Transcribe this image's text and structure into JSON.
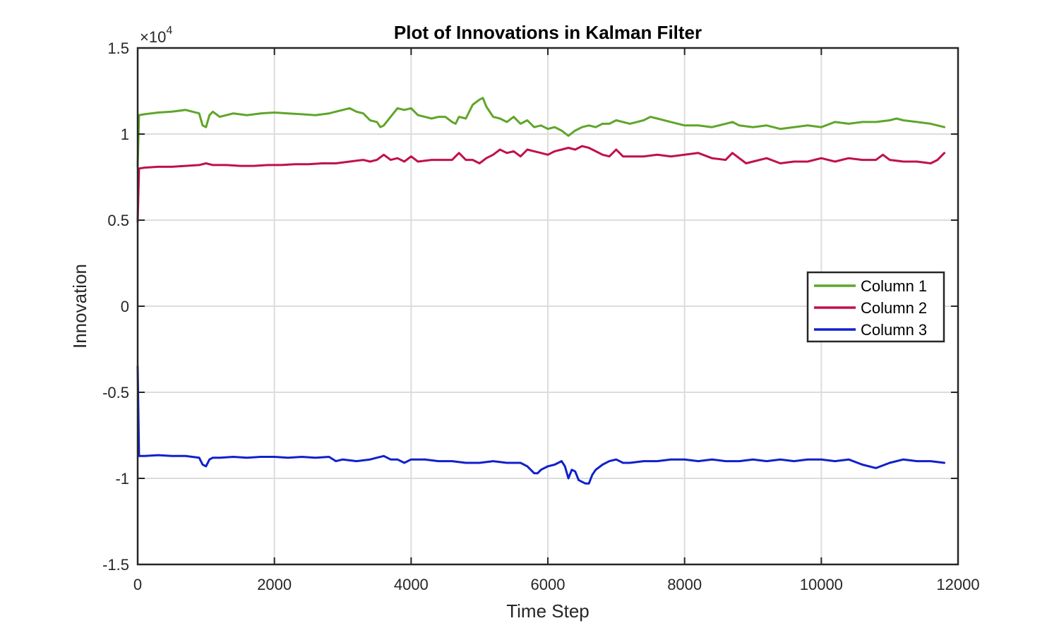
{
  "chart_data": {
    "type": "line",
    "title": "Plot of Innovations in Kalman Filter",
    "xlabel": "Time Step",
    "ylabel": "Innovation",
    "y_exponent_label": "×10",
    "y_exponent_power": "4",
    "xlim": [
      0,
      12000
    ],
    "ylim": [
      -1.5,
      1.5
    ],
    "x_ticks": [
      0,
      2000,
      4000,
      6000,
      8000,
      10000,
      12000
    ],
    "x_tick_labels": [
      "0",
      "2000",
      "4000",
      "6000",
      "8000",
      "10000",
      "12000"
    ],
    "y_ticks": [
      1.5,
      1,
      0.5,
      0,
      -0.5,
      -1,
      -1.5
    ],
    "y_tick_labels": [
      "1.5",
      "1",
      "0.5",
      "0",
      "-0.5",
      "-1",
      "-1.5"
    ],
    "grid": true,
    "legend_position": "right",
    "series": [
      {
        "name": "Column 1",
        "color": "#5fa52a",
        "x": [
          0,
          20,
          100,
          300,
          500,
          700,
          900,
          950,
          1000,
          1050,
          1100,
          1200,
          1400,
          1600,
          1800,
          2000,
          2200,
          2400,
          2600,
          2800,
          3000,
          3100,
          3200,
          3300,
          3400,
          3500,
          3550,
          3600,
          3700,
          3800,
          3900,
          4000,
          4100,
          4200,
          4300,
          4400,
          4500,
          4600,
          4650,
          4700,
          4800,
          4900,
          5000,
          5050,
          5100,
          5200,
          5300,
          5400,
          5500,
          5600,
          5700,
          5800,
          5900,
          6000,
          6100,
          6200,
          6300,
          6400,
          6500,
          6600,
          6700,
          6800,
          6900,
          7000,
          7200,
          7400,
          7500,
          7600,
          7800,
          8000,
          8200,
          8400,
          8600,
          8700,
          8800,
          9000,
          9200,
          9400,
          9600,
          9800,
          10000,
          10200,
          10400,
          10600,
          10800,
          11000,
          11100,
          11200,
          11400,
          11600,
          11700,
          11800
        ],
        "y": [
          0.81,
          1.11,
          1.115,
          1.125,
          1.13,
          1.14,
          1.12,
          1.05,
          1.04,
          1.11,
          1.13,
          1.1,
          1.12,
          1.11,
          1.12,
          1.125,
          1.12,
          1.115,
          1.11,
          1.12,
          1.14,
          1.15,
          1.13,
          1.12,
          1.08,
          1.07,
          1.04,
          1.05,
          1.1,
          1.15,
          1.14,
          1.15,
          1.11,
          1.1,
          1.09,
          1.1,
          1.1,
          1.07,
          1.06,
          1.1,
          1.09,
          1.17,
          1.2,
          1.21,
          1.16,
          1.1,
          1.09,
          1.07,
          1.1,
          1.06,
          1.08,
          1.04,
          1.05,
          1.03,
          1.04,
          1.02,
          0.99,
          1.02,
          1.04,
          1.05,
          1.04,
          1.06,
          1.06,
          1.08,
          1.06,
          1.08,
          1.1,
          1.09,
          1.07,
          1.05,
          1.05,
          1.04,
          1.06,
          1.07,
          1.05,
          1.04,
          1.05,
          1.03,
          1.04,
          1.05,
          1.04,
          1.07,
          1.06,
          1.07,
          1.07,
          1.08,
          1.09,
          1.08,
          1.07,
          1.06,
          1.05,
          1.04
        ]
      },
      {
        "name": "Column 2",
        "color": "#c0104c",
        "x": [
          0,
          20,
          100,
          300,
          500,
          700,
          900,
          1000,
          1100,
          1300,
          1500,
          1700,
          1900,
          2100,
          2300,
          2500,
          2700,
          2900,
          3100,
          3300,
          3400,
          3500,
          3600,
          3700,
          3800,
          3900,
          4000,
          4100,
          4300,
          4500,
          4600,
          4700,
          4800,
          4900,
          5000,
          5100,
          5200,
          5300,
          5400,
          5500,
          5600,
          5700,
          5800,
          5900,
          6000,
          6100,
          6200,
          6300,
          6400,
          6500,
          6600,
          6700,
          6800,
          6900,
          7000,
          7100,
          7200,
          7400,
          7600,
          7800,
          8000,
          8200,
          8400,
          8600,
          8700,
          8800,
          8900,
          9000,
          9200,
          9400,
          9600,
          9800,
          10000,
          10200,
          10400,
          10600,
          10800,
          10900,
          11000,
          11200,
          11400,
          11600,
          11700,
          11800
        ],
        "y": [
          0.49,
          0.8,
          0.805,
          0.81,
          0.81,
          0.815,
          0.82,
          0.83,
          0.82,
          0.82,
          0.815,
          0.815,
          0.82,
          0.82,
          0.825,
          0.825,
          0.83,
          0.83,
          0.84,
          0.85,
          0.84,
          0.85,
          0.88,
          0.85,
          0.86,
          0.84,
          0.87,
          0.84,
          0.85,
          0.85,
          0.85,
          0.89,
          0.85,
          0.85,
          0.83,
          0.86,
          0.88,
          0.91,
          0.89,
          0.9,
          0.87,
          0.91,
          0.9,
          0.89,
          0.88,
          0.9,
          0.91,
          0.92,
          0.91,
          0.93,
          0.92,
          0.9,
          0.88,
          0.87,
          0.91,
          0.87,
          0.87,
          0.87,
          0.88,
          0.87,
          0.88,
          0.89,
          0.86,
          0.85,
          0.89,
          0.86,
          0.83,
          0.84,
          0.86,
          0.83,
          0.84,
          0.84,
          0.86,
          0.84,
          0.86,
          0.85,
          0.85,
          0.88,
          0.85,
          0.84,
          0.84,
          0.83,
          0.85,
          0.89
        ]
      },
      {
        "name": "Column 3",
        "color": "#1020cc",
        "x": [
          0,
          20,
          100,
          300,
          500,
          700,
          900,
          950,
          1000,
          1050,
          1100,
          1200,
          1400,
          1600,
          1800,
          2000,
          2200,
          2400,
          2600,
          2800,
          2900,
          3000,
          3200,
          3400,
          3500,
          3600,
          3700,
          3800,
          3900,
          4000,
          4200,
          4400,
          4600,
          4800,
          5000,
          5200,
          5400,
          5600,
          5700,
          5800,
          5850,
          5900,
          6000,
          6100,
          6200,
          6250,
          6300,
          6350,
          6400,
          6450,
          6500,
          6550,
          6600,
          6650,
          6700,
          6800,
          6900,
          7000,
          7100,
          7200,
          7400,
          7600,
          7800,
          8000,
          8200,
          8400,
          8600,
          8800,
          9000,
          9200,
          9400,
          9600,
          9800,
          10000,
          10200,
          10400,
          10600,
          10800,
          11000,
          11200,
          11400,
          11600,
          11800
        ],
        "y": [
          -0.35,
          -0.87,
          -0.87,
          -0.865,
          -0.87,
          -0.87,
          -0.88,
          -0.92,
          -0.93,
          -0.89,
          -0.88,
          -0.88,
          -0.875,
          -0.88,
          -0.875,
          -0.875,
          -0.88,
          -0.875,
          -0.88,
          -0.875,
          -0.9,
          -0.89,
          -0.9,
          -0.89,
          -0.88,
          -0.87,
          -0.89,
          -0.89,
          -0.91,
          -0.89,
          -0.89,
          -0.9,
          -0.9,
          -0.91,
          -0.91,
          -0.9,
          -0.91,
          -0.91,
          -0.93,
          -0.97,
          -0.97,
          -0.95,
          -0.93,
          -0.92,
          -0.9,
          -0.93,
          -1.0,
          -0.95,
          -0.96,
          -1.01,
          -1.02,
          -1.03,
          -1.03,
          -0.98,
          -0.95,
          -0.92,
          -0.9,
          -0.89,
          -0.91,
          -0.91,
          -0.9,
          -0.9,
          -0.89,
          -0.89,
          -0.9,
          -0.89,
          -0.9,
          -0.9,
          -0.89,
          -0.9,
          -0.89,
          -0.9,
          -0.89,
          -0.89,
          -0.9,
          -0.89,
          -0.92,
          -0.94,
          -0.91,
          -0.89,
          -0.9,
          -0.9,
          -0.91
        ]
      }
    ]
  }
}
